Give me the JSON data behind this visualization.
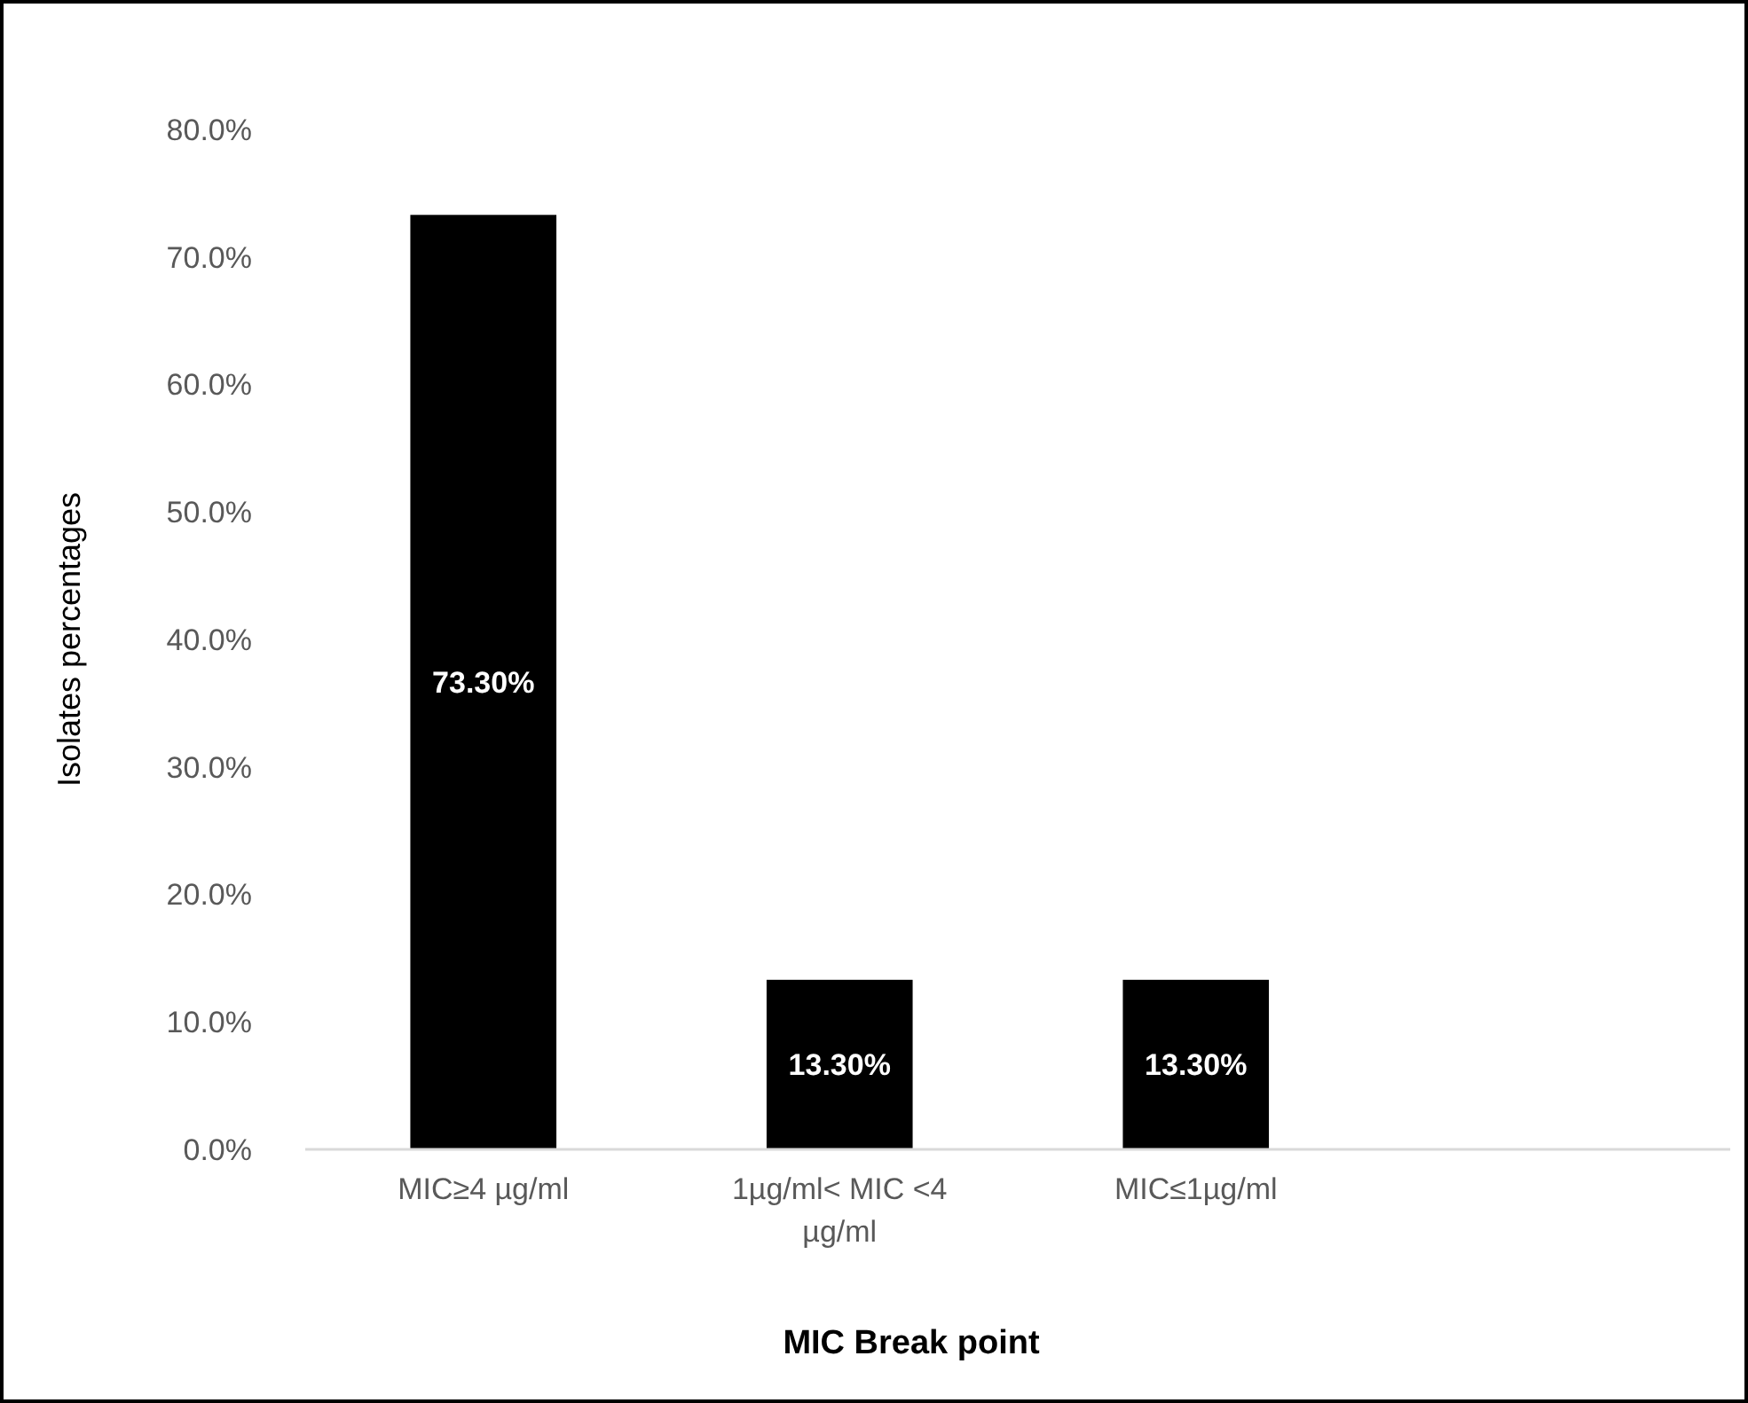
{
  "chart_data": {
    "type": "bar",
    "xlabel": "MIC Break point",
    "ylabel": "Isolates percentages",
    "categories": [
      "MIC≥4 µg/ml",
      "1µg/ml< MIC <4 µg/ml",
      "MIC≤1µg/ml",
      null
    ],
    "values": [
      73.3,
      13.3,
      13.3,
      null
    ],
    "color": "#000000",
    "value_labels": [
      "73.30%",
      "13.30%",
      "13.30%",
      null
    ],
    "ylim": [
      0,
      80
    ],
    "yticks": [
      {
        "value": 0,
        "label": "0.0%"
      },
      {
        "value": 10,
        "label": "10.0%"
      },
      {
        "value": 20,
        "label": "20.0%"
      },
      {
        "value": 30,
        "label": "30.0%"
      },
      {
        "value": 40,
        "label": "40.0%"
      },
      {
        "value": 50,
        "label": "50.0%"
      },
      {
        "value": 60,
        "label": "60.0%"
      },
      {
        "value": 70,
        "label": "70.0%"
      },
      {
        "value": 80,
        "label": "80.0%"
      }
    ]
  }
}
